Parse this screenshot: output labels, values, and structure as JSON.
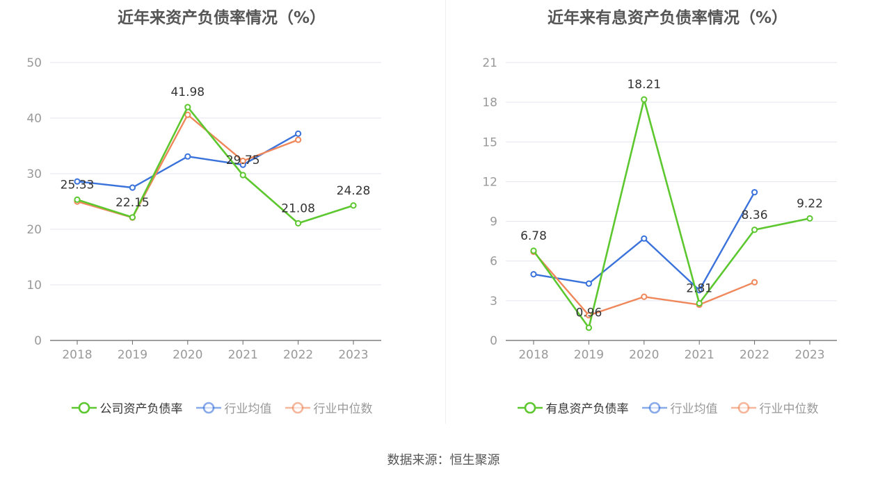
{
  "source_text": "数据来源：恒生聚源",
  "chart_data": [
    {
      "type": "line",
      "title": "近年来资产负债率情况（%）",
      "categories": [
        "2018",
        "2019",
        "2020",
        "2021",
        "2022",
        "2023"
      ],
      "ylim": [
        0,
        50
      ],
      "yticks": [
        0,
        10,
        20,
        30,
        40,
        50
      ],
      "grid": true,
      "legend_position": "bottom",
      "series": [
        {
          "name": "公司资产负债率",
          "color": "#5cc72e",
          "legend_text_color": "#333333",
          "values": [
            25.33,
            22.15,
            41.98,
            29.75,
            21.08,
            24.28
          ],
          "labels": [
            "25.33",
            "22.15",
            "41.98",
            "29.75",
            "21.08",
            "24.28"
          ]
        },
        {
          "name": "行业均值",
          "color": "#3a72db",
          "legend_text_color": "#999999",
          "values": [
            28.6,
            27.5,
            33.1,
            31.6,
            37.2,
            null
          ]
        },
        {
          "name": "行业中位数",
          "color": "#f0875a",
          "legend_text_color": "#999999",
          "values": [
            25.0,
            22.1,
            40.6,
            32.3,
            36.1,
            null
          ]
        }
      ]
    },
    {
      "type": "line",
      "title": "近年来有息资产负债率情况（%）",
      "categories": [
        "2018",
        "2019",
        "2020",
        "2021",
        "2022",
        "2023"
      ],
      "ylim": [
        0,
        21
      ],
      "yticks": [
        0,
        3,
        6,
        9,
        12,
        15,
        18,
        21
      ],
      "grid": true,
      "legend_position": "bottom",
      "series": [
        {
          "name": "有息资产负债率",
          "color": "#5cc72e",
          "legend_text_color": "#333333",
          "values": [
            6.78,
            0.96,
            18.21,
            2.81,
            8.36,
            9.22
          ],
          "labels": [
            "6.78",
            "0.96",
            "18.21",
            "2.81",
            "8.36",
            "9.22"
          ]
        },
        {
          "name": "行业均值",
          "color": "#3a72db",
          "legend_text_color": "#999999",
          "values": [
            5.0,
            4.3,
            7.7,
            3.8,
            11.2,
            null
          ]
        },
        {
          "name": "行业中位数",
          "color": "#f0875a",
          "legend_text_color": "#999999",
          "values": [
            6.7,
            1.9,
            3.3,
            2.7,
            4.4,
            null
          ]
        }
      ]
    }
  ]
}
